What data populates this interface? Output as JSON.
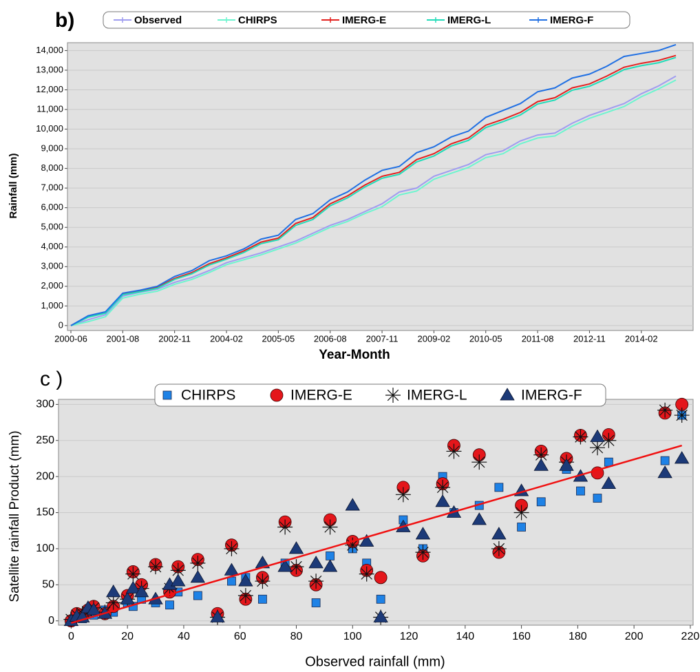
{
  "chart_data": [
    {
      "type": "line",
      "panel_label": "b)",
      "y_label": "Rainfall (mm)",
      "x_label": "Year-Month",
      "categories": [
        "2000-06",
        null,
        null,
        "2001-08",
        null,
        null,
        "2002-11",
        null,
        null,
        "2004-02",
        null,
        null,
        "2005-05",
        null,
        null,
        "2006-08",
        null,
        null,
        "2007-11",
        null,
        null,
        "2009-02",
        null,
        null,
        "2010-05",
        null,
        null,
        "2011-08",
        null,
        null,
        "2012-11",
        null,
        null,
        "2014-02",
        null,
        null
      ],
      "series": [
        {
          "name": "Observed",
          "color": "#9f9cf0",
          "values": [
            0,
            300,
            550,
            1500,
            1700,
            1850,
            2200,
            2450,
            2800,
            3200,
            3450,
            3700,
            4000,
            4300,
            4700,
            5100,
            5400,
            5800,
            6200,
            6800,
            7000,
            7600,
            7900,
            8200,
            8700,
            8900,
            9400,
            9700,
            9800,
            10300,
            10700,
            11000,
            11300,
            11800,
            12200,
            12700
          ]
        },
        {
          "name": "CHIRPS",
          "color": "#6df5cf",
          "values": [
            0,
            200,
            450,
            1400,
            1600,
            1750,
            2100,
            2350,
            2700,
            3100,
            3350,
            3600,
            3900,
            4200,
            4600,
            5000,
            5300,
            5700,
            6050,
            6650,
            6850,
            7450,
            7750,
            8050,
            8550,
            8750,
            9250,
            9550,
            9650,
            10150,
            10550,
            10850,
            11150,
            11650,
            12050,
            12500
          ]
        },
        {
          "name": "IMERG-E",
          "color": "#e3201e",
          "values": [
            0,
            450,
            650,
            1600,
            1750,
            1950,
            2400,
            2700,
            3150,
            3450,
            3800,
            4250,
            4450,
            5200,
            5500,
            6200,
            6600,
            7150,
            7600,
            7800,
            8450,
            8750,
            9250,
            9550,
            10200,
            10500,
            10850,
            11400,
            11600,
            12100,
            12300,
            12700,
            13150,
            13350,
            13500,
            13750
          ]
        },
        {
          "name": "IMERG-L",
          "color": "#20dcb8",
          "values": [
            0,
            430,
            630,
            1570,
            1720,
            1900,
            2350,
            2640,
            3080,
            3380,
            3720,
            4170,
            4370,
            5100,
            5400,
            6100,
            6500,
            7050,
            7500,
            7700,
            8330,
            8630,
            9140,
            9430,
            10080,
            10380,
            10720,
            11280,
            11480,
            11980,
            12180,
            12570,
            13030,
            13230,
            13380,
            13650
          ]
        },
        {
          "name": "IMERG-F",
          "color": "#1f6fe3",
          "values": [
            0,
            500,
            700,
            1650,
            1800,
            2000,
            2500,
            2800,
            3300,
            3550,
            3900,
            4400,
            4600,
            5400,
            5700,
            6400,
            6800,
            7400,
            7900,
            8100,
            8800,
            9100,
            9600,
            9900,
            10600,
            10950,
            11300,
            11900,
            12100,
            12600,
            12800,
            13200,
            13700,
            13850,
            14000,
            14300
          ]
        }
      ],
      "ylim": [
        -250,
        14400
      ],
      "yticks": [
        0,
        {
          "value": 1000,
          "label": "1,000"
        },
        {
          "value": 2000,
          "label": "2,000"
        },
        {
          "value": 3000,
          "label": "3,000"
        },
        {
          "value": 4000,
          "label": "4,000"
        },
        {
          "value": 5000,
          "label": "5,000"
        },
        {
          "value": 6000,
          "label": "6,000"
        },
        {
          "value": 7000,
          "label": "7,000"
        },
        {
          "value": 8000,
          "label": "8,000"
        },
        {
          "value": 9000,
          "label": "9,000"
        },
        {
          "value": 10000,
          "label": "10,000"
        },
        {
          "value": 11000,
          "label": "11,000"
        },
        {
          "value": 12000,
          "label": "12,000"
        },
        {
          "value": 13000,
          "label": "13,000"
        },
        {
          "value": 14000,
          "label": "14,000"
        }
      ],
      "grid": true
    },
    {
      "type": "scatter",
      "panel_label": "c )",
      "x_label": "Observed  rainfall (mm)",
      "y_label": "Satellite rainfall Product (mm)",
      "x": [
        0,
        2,
        4,
        6,
        8,
        12,
        15,
        20,
        22,
        25,
        30,
        35,
        38,
        45,
        52,
        57,
        62,
        68,
        76,
        80,
        87,
        92,
        100,
        105,
        110,
        118,
        125,
        132,
        136,
        145,
        152,
        160,
        167,
        176,
        181,
        187,
        191,
        211,
        217
      ],
      "series": [
        {
          "name": "CHIRPS",
          "color": "#1e82e6",
          "marker": "square",
          "values": [
            0,
            5,
            3,
            10,
            8,
            15,
            12,
            25,
            20,
            30,
            25,
            22,
            40,
            35,
            5,
            55,
            60,
            30,
            80,
            70,
            25,
            90,
            100,
            80,
            30,
            140,
            100,
            200,
            150,
            160,
            185,
            130,
            165,
            210,
            180,
            170,
            220,
            222,
            285
          ]
        },
        {
          "name": "IMERG-E",
          "color": "#e4161b",
          "marker": "circle",
          "values": [
            0,
            10,
            8,
            15,
            20,
            10,
            20,
            35,
            68,
            50,
            78,
            40,
            75,
            85,
            10,
            105,
            30,
            60,
            137,
            70,
            50,
            140,
            110,
            70,
            60,
            185,
            90,
            190,
            243,
            230,
            95,
            160,
            235,
            225,
            257,
            205,
            258,
            288,
            300
          ]
        },
        {
          "name": "IMERG-L",
          "color": "#111111",
          "marker": "asterisk",
          "values": [
            2,
            8,
            10,
            12,
            18,
            12,
            25,
            30,
            65,
            45,
            75,
            45,
            70,
            80,
            5,
            100,
            35,
            55,
            130,
            75,
            55,
            130,
            105,
            65,
            5,
            175,
            95,
            185,
            235,
            220,
            100,
            150,
            230,
            220,
            255,
            240,
            250,
            292,
            285
          ]
        },
        {
          "name": "IMERG-F",
          "color": "#1c3a78",
          "marker": "triangle",
          "values": [
            0,
            6,
            5,
            18,
            15,
            10,
            40,
            30,
            45,
            40,
            30,
            50,
            55,
            60,
            5,
            70,
            55,
            80,
            75,
            100,
            80,
            75,
            160,
            110,
            5,
            130,
            120,
            165,
            150,
            140,
            120,
            180,
            215,
            215,
            200,
            255,
            190,
            205,
            225
          ]
        }
      ],
      "trendline": {
        "x": [
          0,
          217
        ],
        "y": [
          -3,
          243
        ],
        "color": "#f01010"
      },
      "xlim": [
        -4.5,
        221
      ],
      "ylim": [
        -6,
        307
      ],
      "xticks": [
        0,
        20,
        40,
        60,
        80,
        100,
        120,
        140,
        160,
        180,
        200,
        220
      ],
      "yticks": [
        0,
        50,
        100,
        150,
        200,
        250,
        300
      ],
      "grid": true
    }
  ]
}
